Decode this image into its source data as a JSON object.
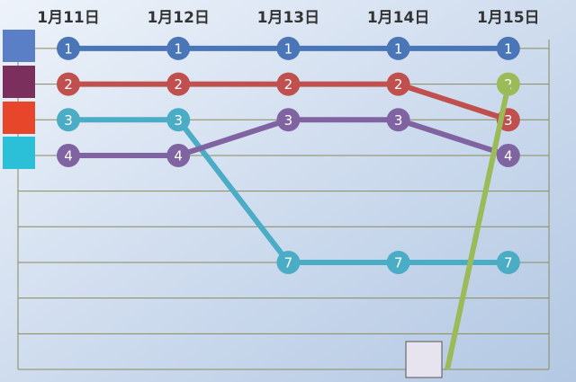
{
  "chart_data": {
    "type": "bump",
    "categories": [
      "1月11日",
      "1月12日",
      "1月13日",
      "1月14日",
      "1月15日"
    ],
    "series": [
      {
        "color": "#4a76b8",
        "values": [
          1,
          1,
          1,
          1,
          1
        ]
      },
      {
        "color": "#c0504d",
        "values": [
          2,
          2,
          2,
          2,
          3
        ]
      },
      {
        "color": "#4bacc6",
        "values": [
          3,
          3,
          7,
          7,
          7
        ]
      },
      {
        "color": "#8064a2",
        "values": [
          4,
          4,
          3,
          3,
          4
        ]
      },
      {
        "color": "#9bbb59",
        "values": [
          null,
          null,
          null,
          null,
          2
        ]
      }
    ],
    "ylim": [
      10,
      0.75
    ],
    "yticks": [
      1,
      2,
      3,
      4,
      5,
      6,
      7,
      8,
      9,
      10
    ],
    "grid": true
  }
}
